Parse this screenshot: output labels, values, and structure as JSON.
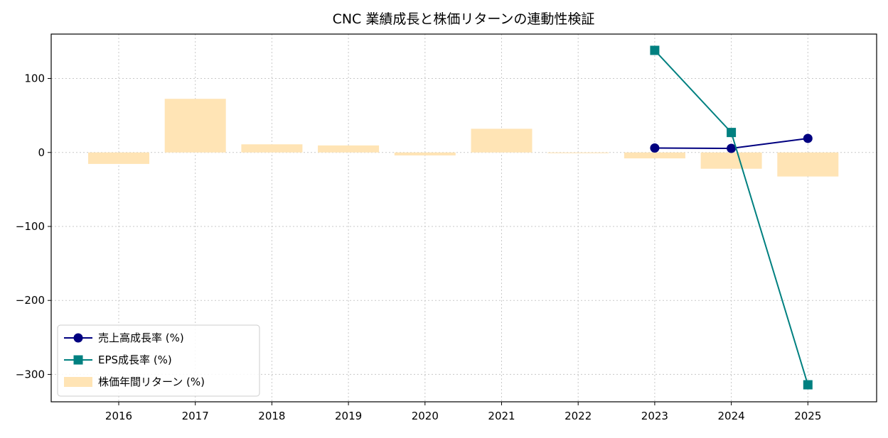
{
  "chart_data": {
    "type": "bar",
    "title": "CNC 業績成長と株価リターンの連動性検証",
    "xlabel": "",
    "ylabel": "",
    "categories": [
      "2016",
      "2017",
      "2018",
      "2019",
      "2020",
      "2021",
      "2022",
      "2023",
      "2024",
      "2025"
    ],
    "ylim": [
      -337,
      160
    ],
    "yticks": [
      100,
      0,
      -100,
      -200,
      -300
    ],
    "ytick_labels": [
      "100",
      "0",
      "−100",
      "−200",
      "−300"
    ],
    "grid": true,
    "legend_position": "lower-left",
    "series": [
      {
        "name": "売上高成長率 (%)",
        "kind": "line",
        "marker": "circle",
        "color": "#000080",
        "values": [
          null,
          null,
          null,
          null,
          null,
          null,
          null,
          6,
          5.5,
          19
        ]
      },
      {
        "name": "EPS成長率 (%)",
        "kind": "line",
        "marker": "square",
        "color": "#008080",
        "values": [
          null,
          null,
          null,
          null,
          null,
          null,
          null,
          138,
          27,
          -314
        ]
      },
      {
        "name": "株価年間リターン (%)",
        "kind": "bar",
        "color": "#ffe4b5",
        "values": [
          -15.5,
          72.5,
          11,
          9.5,
          -4,
          32,
          -1,
          -8,
          -22,
          -32.5
        ]
      }
    ]
  }
}
